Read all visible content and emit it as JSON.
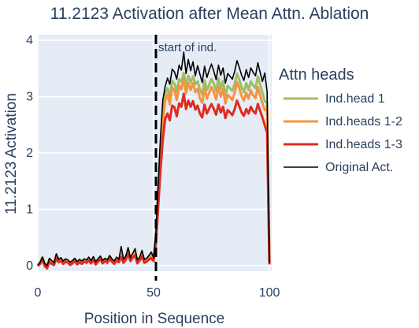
{
  "chart_data": {
    "type": "line",
    "title": "11.2123 Activation after Mean Attn. Ablation",
    "xlabel": "Position in Sequence",
    "ylabel": "11.2123 Activation",
    "xlim": [
      0,
      101
    ],
    "ylim": [
      -0.1,
      4.1
    ],
    "x_ticks": [
      0,
      50,
      100
    ],
    "y_ticks": [
      0,
      1,
      2,
      3,
      4
    ],
    "grid": true,
    "legend": {
      "title": "Attn heads",
      "placement": "right"
    },
    "annotation": {
      "text": "start of ind.",
      "x": 51
    },
    "series": [
      {
        "name": "Ind.head 1",
        "color": "#9fbd64",
        "values": [
          0.01,
          0.06,
          0.15,
          0.03,
          -0.01,
          0.11,
          0.07,
          0.04,
          0.19,
          0.1,
          0.13,
          0.07,
          0.11,
          0.09,
          0.05,
          0.08,
          0.12,
          0.06,
          0.1,
          0.07,
          0.11,
          0.09,
          0.13,
          0.08,
          0.14,
          0.06,
          0.11,
          0.15,
          0.08,
          0.12,
          0.09,
          0.16,
          0.11,
          0.07,
          0.13,
          0.1,
          0.21,
          0.09,
          0.14,
          0.28,
          0.12,
          0.19,
          0.24,
          0.08,
          0.13,
          0.22,
          0.09,
          0.11,
          0.15,
          0.19,
          0.12,
          0.54,
          1.28,
          2.08,
          2.63,
          3.05,
          3.15,
          3.0,
          3.28,
          3.23,
          3.09,
          3.31,
          3.26,
          3.42,
          3.2,
          3.37,
          3.25,
          3.36,
          3.22,
          3.27,
          3.13,
          3.03,
          3.29,
          3.12,
          3.21,
          3.31,
          3.23,
          3.1,
          3.32,
          3.14,
          3.28,
          3.02,
          3.19,
          3.15,
          3.1,
          3.23,
          3.41,
          3.3,
          3.16,
          3.08,
          3.24,
          3.12,
          3.27,
          3.2,
          3.15,
          3.36,
          3.21,
          3.07,
          2.92,
          2.89,
          0.05
        ]
      },
      {
        "name": "Ind.heads 1-2",
        "color": "#f39440",
        "values": [
          0.0,
          0.05,
          0.13,
          0.02,
          -0.02,
          0.1,
          0.06,
          0.03,
          0.17,
          0.09,
          0.11,
          0.06,
          0.1,
          0.08,
          0.04,
          0.07,
          0.11,
          0.05,
          0.09,
          0.06,
          0.1,
          0.08,
          0.12,
          0.07,
          0.13,
          0.05,
          0.1,
          0.14,
          0.07,
          0.11,
          0.08,
          0.15,
          0.1,
          0.06,
          0.12,
          0.09,
          0.19,
          0.08,
          0.13,
          0.26,
          0.11,
          0.18,
          0.22,
          0.07,
          0.12,
          0.2,
          0.08,
          0.1,
          0.14,
          0.17,
          0.11,
          0.5,
          1.2,
          1.98,
          2.55,
          2.93,
          3.04,
          2.86,
          3.16,
          3.11,
          2.94,
          3.2,
          3.13,
          3.31,
          3.06,
          3.24,
          3.12,
          3.24,
          3.08,
          3.14,
          2.97,
          2.89,
          3.16,
          2.96,
          3.07,
          3.17,
          3.08,
          2.95,
          3.18,
          3.0,
          3.13,
          2.88,
          3.03,
          2.99,
          2.94,
          3.07,
          3.26,
          3.15,
          3.01,
          2.93,
          3.07,
          2.96,
          3.11,
          3.02,
          2.97,
          3.17,
          3.02,
          2.88,
          2.76,
          2.8,
          0.04
        ]
      },
      {
        "name": "Ind.heads 1-3",
        "color": "#e02b20",
        "values": [
          -0.01,
          0.03,
          0.1,
          -0.01,
          -0.05,
          0.07,
          0.03,
          0.01,
          0.13,
          0.06,
          0.08,
          0.03,
          0.07,
          0.05,
          0.01,
          0.04,
          0.08,
          0.02,
          0.06,
          0.03,
          0.07,
          0.05,
          0.09,
          0.04,
          0.1,
          0.02,
          0.07,
          0.11,
          0.04,
          0.08,
          0.05,
          0.12,
          0.07,
          0.03,
          0.09,
          0.06,
          0.15,
          0.05,
          0.1,
          0.21,
          0.08,
          0.14,
          0.18,
          0.04,
          0.09,
          0.16,
          0.05,
          0.07,
          0.11,
          0.13,
          0.08,
          0.4,
          1.05,
          1.72,
          2.25,
          2.6,
          2.7,
          2.58,
          2.84,
          2.81,
          2.65,
          2.88,
          2.82,
          3.05,
          2.78,
          2.93,
          2.82,
          2.92,
          2.77,
          2.84,
          2.7,
          2.63,
          2.86,
          2.7,
          2.79,
          2.87,
          2.78,
          2.68,
          2.86,
          2.72,
          2.82,
          2.62,
          2.76,
          2.72,
          2.67,
          2.78,
          2.93,
          2.83,
          2.72,
          2.66,
          2.78,
          2.7,
          2.82,
          2.74,
          2.7,
          2.87,
          2.75,
          2.63,
          2.49,
          2.36,
          0.02
        ]
      },
      {
        "name": "Original Act.",
        "color": "#000000",
        "values": [
          0.01,
          0.06,
          0.15,
          0.04,
          0.0,
          0.13,
          0.09,
          0.05,
          0.21,
          0.11,
          0.14,
          0.08,
          0.12,
          0.1,
          0.06,
          0.09,
          0.13,
          0.07,
          0.11,
          0.08,
          0.12,
          0.1,
          0.15,
          0.09,
          0.16,
          0.07,
          0.12,
          0.17,
          0.09,
          0.13,
          0.1,
          0.18,
          0.12,
          0.08,
          0.15,
          0.11,
          0.34,
          0.11,
          0.17,
          0.32,
          0.14,
          0.22,
          0.3,
          0.1,
          0.15,
          0.27,
          0.11,
          0.13,
          0.18,
          0.24,
          0.14,
          0.62,
          1.48,
          2.32,
          2.95,
          3.18,
          3.33,
          3.22,
          3.49,
          3.44,
          3.31,
          3.56,
          3.47,
          3.79,
          3.41,
          3.66,
          3.46,
          3.62,
          3.37,
          3.55,
          3.4,
          3.25,
          3.54,
          3.34,
          3.47,
          3.58,
          3.45,
          3.3,
          3.56,
          3.38,
          3.51,
          3.24,
          3.41,
          3.36,
          3.31,
          3.45,
          3.64,
          3.52,
          3.38,
          3.29,
          3.48,
          3.34,
          3.51,
          3.43,
          3.37,
          3.6,
          3.43,
          3.27,
          3.42,
          3.09,
          0.05
        ]
      }
    ]
  }
}
